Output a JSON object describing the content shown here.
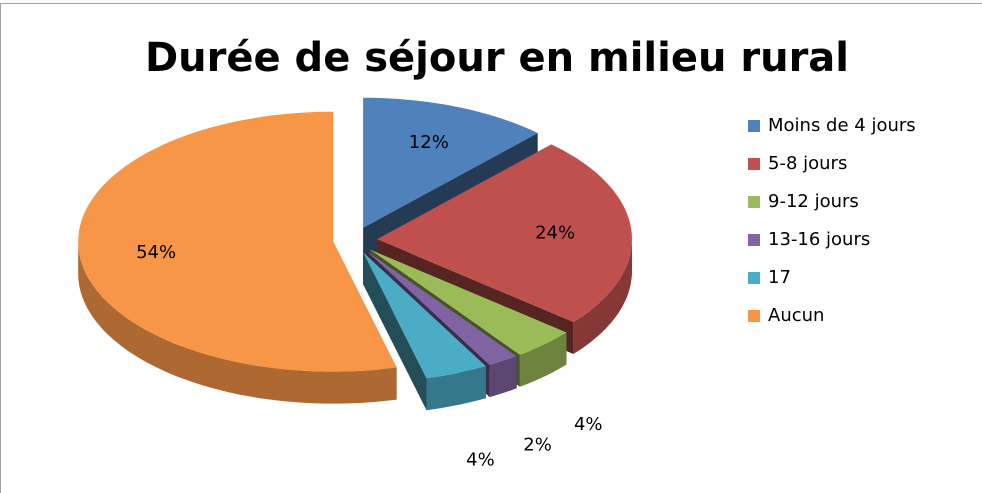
{
  "chart_data": {
    "type": "pie",
    "title": "Durée de séjour en milieu rural",
    "categories": [
      "Moins de 4 jours",
      "5-8 jours",
      "9-12 jours",
      "13-16 jours",
      "17",
      "Aucun"
    ],
    "values": [
      12,
      24,
      4,
      2,
      4,
      54
    ],
    "value_labels": [
      "12%",
      "24%",
      "4%",
      "2%",
      "4%",
      "54%"
    ],
    "colors": [
      "#4f81bd",
      "#c0504d",
      "#9bbb59",
      "#8064a2",
      "#4bacc6",
      "#f79646"
    ],
    "legend": "right",
    "exploded": true,
    "three_d": true
  }
}
